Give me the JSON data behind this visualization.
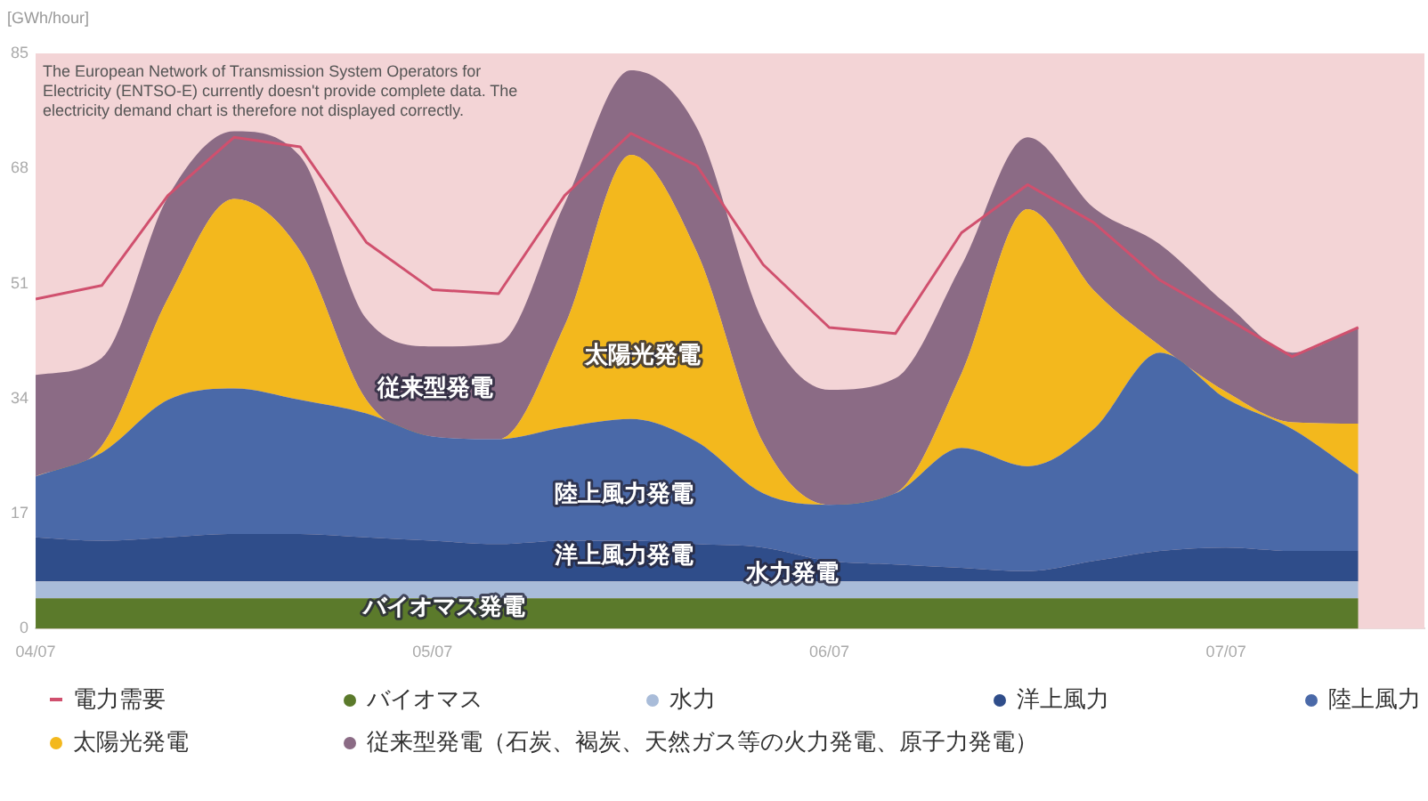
{
  "chart_data": {
    "type": "area",
    "stacked": true,
    "ylabel": "[GWh/hour]",
    "x": [
      "--07-04T00:00",
      "--07-04T04:00",
      "--07-04T08:00",
      "--07-04T12:00",
      "--07-04T16:00",
      "--07-04T20:00",
      "--07-05T00:00",
      "--07-05T04:00",
      "--07-05T08:00",
      "--07-05T12:00",
      "--07-05T16:00",
      "--07-05T20:00",
      "--07-06T00:00",
      "--07-06T04:00",
      "--07-06T08:00",
      "--07-06T12:00",
      "--07-06T16:00",
      "--07-06T20:00",
      "--07-07T00:00",
      "--07-07T04:00",
      "--07-07T08:00"
    ],
    "xlim": [
      "--07-04T00:00",
      "--07-07T12:00"
    ],
    "xticks": [
      {
        "value": "--07-04",
        "label": "04/07"
      },
      {
        "value": "--07-05",
        "label": "05/07"
      },
      {
        "value": "--07-06",
        "label": "06/07"
      },
      {
        "value": "--07-07",
        "label": "07/07"
      }
    ],
    "ylim": [
      0,
      85
    ],
    "yticks": [
      0,
      17,
      34,
      51,
      68,
      85
    ],
    "legend": "bottom",
    "bands": [
      {
        "axis": "x",
        "from": "--07-04T00:00",
        "to": "--07-07T12:00",
        "color": "#f3d4d6",
        "label": "The European Network of Transmission System Operators for Electricity (ENTSO-E) currently doesn't provide complete data. The electricity demand chart is therefore not displayed correctly."
      }
    ],
    "annotations": [
      "従来型発電",
      "太陽光発電",
      "陸上風力発電",
      "洋上風力発電",
      "水力発電",
      "バイオマス発電"
    ],
    "series": [
      {
        "name": "電力需要",
        "type": "line",
        "color": "#d0506e",
        "values": [
          48.7,
          50.7,
          64,
          72.6,
          71.2,
          57.1,
          50.1,
          49.5,
          64,
          73.2,
          68.4,
          53.8,
          44.5,
          43.6,
          58.5,
          65.6,
          60,
          51.5,
          45.9,
          40.2,
          44.5
        ]
      },
      {
        "name": "バイオマス",
        "color": "#5b7a2b",
        "values": [
          4.5,
          4.5,
          4.5,
          4.5,
          4.5,
          4.5,
          4.5,
          4.5,
          4.5,
          4.5,
          4.5,
          4.5,
          4.5,
          4.5,
          4.5,
          4.5,
          4.5,
          4.5,
          4.5,
          4.5,
          4.5
        ]
      },
      {
        "name": "水力",
        "color": "#a9bcd9",
        "values": [
          2.5,
          2.5,
          2.5,
          2.5,
          2.5,
          2.5,
          2.5,
          2.5,
          2.5,
          2.5,
          2.5,
          2.5,
          2.5,
          2.5,
          2.5,
          2.5,
          2.5,
          2.5,
          2.5,
          2.5,
          2.5
        ]
      },
      {
        "name": "洋上風力",
        "color": "#2f4d8a",
        "values": [
          6.5,
          6,
          6.5,
          7,
          7,
          6.5,
          6,
          5.5,
          6,
          6,
          5.5,
          5,
          3,
          2.5,
          2,
          1.5,
          3,
          4.5,
          5,
          4.5,
          4.5
        ]
      },
      {
        "name": "陸上風力",
        "color": "#4a69a8",
        "values": [
          9,
          13,
          20.3,
          21.5,
          19.8,
          18.3,
          15.4,
          15.5,
          16.8,
          18,
          15.1,
          8,
          8.3,
          10.5,
          17.7,
          15.5,
          19.5,
          29.3,
          22,
          18,
          11.3
        ]
      },
      {
        "name": "太陽光発電",
        "color": "#f3b81d",
        "values": [
          0,
          1,
          15,
          28,
          22,
          2,
          0,
          0,
          15,
          39,
          28,
          7.5,
          0,
          0,
          11,
          38,
          20.5,
          1,
          1,
          1,
          7.5
        ]
      },
      {
        "name": "従来型発電（石炭、褐炭、天然ガス等の火力発電、原子力発電）",
        "color": "#8b6b85",
        "values": [
          15,
          13,
          15,
          10,
          14,
          12,
          13.3,
          14.2,
          18,
          12.5,
          18.4,
          17.8,
          17,
          17,
          16,
          10.6,
          12.2,
          15,
          13,
          10.3,
          14.2
        ]
      }
    ]
  }
}
